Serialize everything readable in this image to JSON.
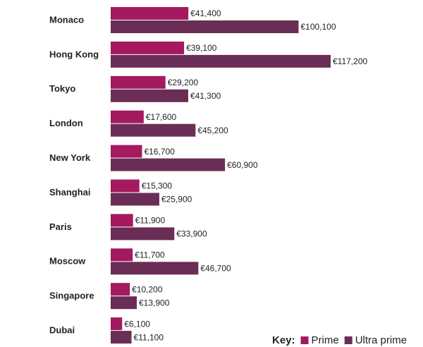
{
  "chart_data": {
    "type": "hbar",
    "categories": [
      "Monaco",
      "Hong Kong",
      "Tokyo",
      "London",
      "New York",
      "Shanghai",
      "Paris",
      "Moscow",
      "Singapore",
      "Dubai"
    ],
    "series": [
      {
        "name": "Prime",
        "color": "#a31a5f",
        "values": [
          41400,
          39100,
          29200,
          17600,
          16700,
          15300,
          11900,
          11700,
          10200,
          6100
        ],
        "value_labels": [
          "€41,400",
          "€39,100",
          "€29,200",
          "€17,600",
          "€16,700",
          "€15,300",
          "€11,900",
          "€11,700",
          "€10,200",
          "€6,100"
        ]
      },
      {
        "name": "Ultra prime",
        "color": "#6a2d56",
        "values": [
          100100,
          117200,
          41300,
          45200,
          60900,
          25900,
          33900,
          46700,
          13900,
          11100
        ],
        "value_labels": [
          "€100,100",
          "€117,200",
          "€41,300",
          "€45,200",
          "€60,900",
          "€25,900",
          "€33,900",
          "€46,700",
          "€13,900",
          "€11,100"
        ]
      }
    ],
    "legend_title": "Key:",
    "legend": "bottom-right"
  }
}
